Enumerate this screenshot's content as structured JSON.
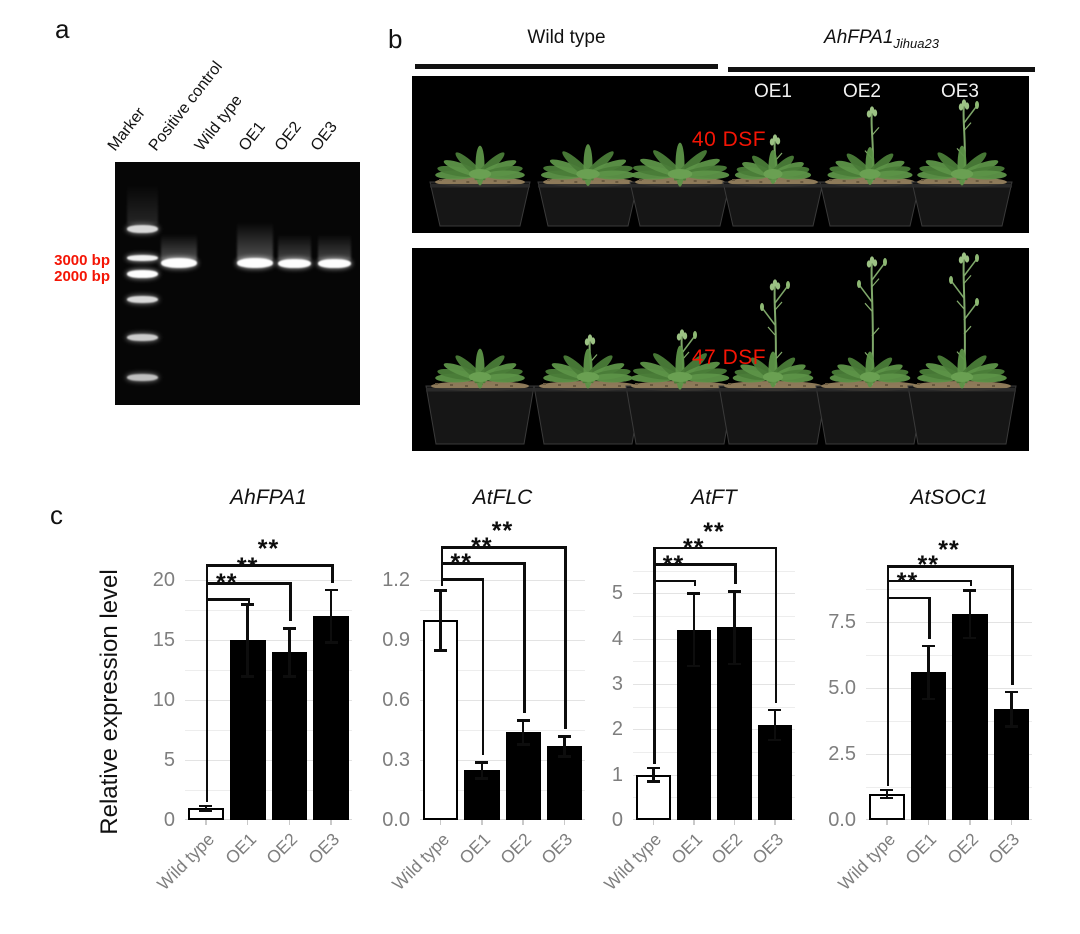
{
  "figure": {
    "panel_a": {
      "label": "a",
      "lane_labels": [
        "Marker",
        "Positive control",
        "Wild type",
        "OE1",
        "OE2",
        "OE3"
      ],
      "size_labels": [
        "3000 bp",
        "2000 bp"
      ],
      "size_label_color": "#f41505",
      "band_lanes": [
        "Positive control",
        "OE1",
        "OE2",
        "OE3"
      ]
    },
    "panel_b": {
      "label": "b",
      "group_left": "Wild type",
      "group_right_main": "AhFPA1",
      "group_right_sub": "Jihua23",
      "line_labels": [
        "OE1",
        "OE2",
        "OE3"
      ],
      "photo_top_caption": "40 DSF",
      "photo_bottom_caption": "47 DSF",
      "caption_color": "#f41505"
    },
    "panel_c": {
      "label": "c",
      "y_axis_label": "Relative expression level"
    }
  },
  "chart_data": [
    {
      "type": "bar",
      "title": "AhFPA1",
      "categories": [
        "Wild type",
        "OE1",
        "OE2",
        "OE3"
      ],
      "values": [
        1.0,
        15.0,
        14.0,
        17.0
      ],
      "errors": [
        0.2,
        3.0,
        2.0,
        2.2
      ],
      "bar_fill": [
        "white",
        "black",
        "black",
        "black"
      ],
      "yticks": [
        0,
        5,
        10,
        15,
        20
      ],
      "ytick_labels": [
        "0",
        "5",
        "10",
        "15",
        "20"
      ],
      "ylim": [
        0,
        22
      ],
      "minor_step": 2.5,
      "grid": true,
      "ylabel": "Relative expression level",
      "significance": [
        {
          "compare": [
            "Wild type",
            "OE1"
          ],
          "label": "**",
          "bracket_y": 18.5
        },
        {
          "compare": [
            "Wild type",
            "OE2"
          ],
          "label": "**",
          "bracket_y": 19.8
        },
        {
          "compare": [
            "Wild type",
            "OE3"
          ],
          "label": "**",
          "bracket_y": 21.3
        }
      ]
    },
    {
      "type": "bar",
      "title": "AtFLC",
      "categories": [
        "Wild type",
        "OE1",
        "OE2",
        "OE3"
      ],
      "values": [
        1.0,
        0.25,
        0.44,
        0.37
      ],
      "errors": [
        0.15,
        0.04,
        0.06,
        0.05
      ],
      "bar_fill": [
        "white",
        "black",
        "black",
        "black"
      ],
      "yticks": [
        0,
        0.3,
        0.6,
        0.9,
        1.2
      ],
      "ytick_labels": [
        "0.0",
        "0.3",
        "0.6",
        "0.9",
        "1.2"
      ],
      "ylim": [
        0,
        1.325
      ],
      "minor_step": 0.15,
      "grid": true,
      "ylabel": "Relative expression level",
      "significance": [
        {
          "compare": [
            "Wild type",
            "OE1"
          ],
          "label": "**",
          "bracket_y": 1.21
        },
        {
          "compare": [
            "Wild type",
            "OE2"
          ],
          "label": "**",
          "bracket_y": 1.29
        },
        {
          "compare": [
            "Wild type",
            "OE3"
          ],
          "label": "**",
          "bracket_y": 1.37
        }
      ]
    },
    {
      "type": "bar",
      "title": "AtFT",
      "categories": [
        "Wild type",
        "OE1",
        "OE2",
        "OE3"
      ],
      "values": [
        1.0,
        4.2,
        4.25,
        2.1
      ],
      "errors": [
        0.15,
        0.8,
        0.8,
        0.33
      ],
      "bar_fill": [
        "white",
        "black",
        "black",
        "black"
      ],
      "yticks": [
        0,
        1,
        2,
        3,
        4,
        5
      ],
      "ytick_labels": [
        "0",
        "1",
        "2",
        "3",
        "4",
        "5"
      ],
      "ylim": [
        0,
        5.8
      ],
      "minor_step": 0.5,
      "grid": true,
      "ylabel": "Relative expression level",
      "significance": [
        {
          "compare": [
            "Wild type",
            "OE1"
          ],
          "label": "**",
          "bracket_y": 5.3
        },
        {
          "compare": [
            "Wild type",
            "OE2"
          ],
          "label": "**",
          "bracket_y": 5.66
        },
        {
          "compare": [
            "Wild type",
            "OE3"
          ],
          "label": "**",
          "bracket_y": 6.03
        }
      ]
    },
    {
      "type": "bar",
      "title": "AtSOC1",
      "categories": [
        "Wild type",
        "OE1",
        "OE2",
        "OE3"
      ],
      "values": [
        1.0,
        5.6,
        7.8,
        4.2
      ],
      "errors": [
        0.15,
        1.0,
        0.9,
        0.65
      ],
      "bar_fill": [
        "white",
        "black",
        "black",
        "black"
      ],
      "yticks": [
        0,
        2.5,
        5,
        7.5
      ],
      "ytick_labels": [
        "0.0",
        "2.5",
        "5.0",
        "7.5"
      ],
      "ylim": [
        0,
        9.32
      ],
      "minor_step": 1.25,
      "grid": true,
      "ylabel": "Relative expression level",
      "significance": [
        {
          "compare": [
            "Wild type",
            "OE1"
          ],
          "label": "**",
          "bracket_y": 8.45
        },
        {
          "compare": [
            "Wild type",
            "OE2"
          ],
          "label": "**",
          "bracket_y": 9.1
        },
        {
          "compare": [
            "Wild type",
            "OE3"
          ],
          "label": "**",
          "bracket_y": 9.66
        }
      ]
    }
  ]
}
